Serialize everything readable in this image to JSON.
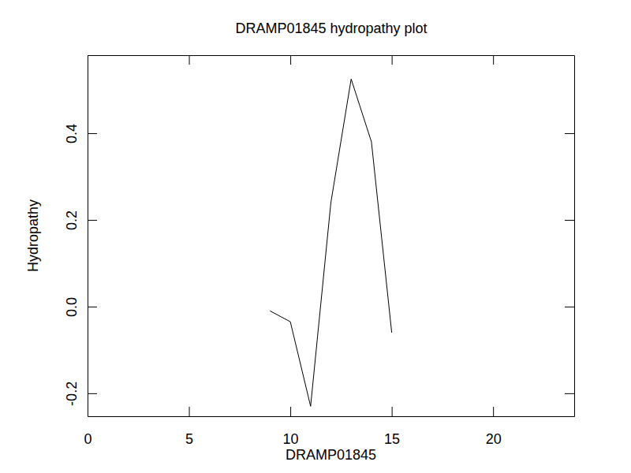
{
  "chart_data": {
    "type": "line",
    "title": "DRAMP01845 hydropathy plot",
    "x_label": "DRAMP01845",
    "y_label": "Hydropathy",
    "x": [
      9,
      10,
      11,
      12,
      13,
      14,
      15
    ],
    "values": [
      -0.01,
      -0.035,
      -0.23,
      0.24,
      0.525,
      0.38,
      -0.06
    ],
    "color": "#000000",
    "xlim": [
      0,
      24
    ],
    "xticks": [
      0,
      5,
      10,
      15,
      20
    ],
    "ylim": [
      -0.253,
      0.58
    ],
    "yticks": [
      -0.2,
      {
        "value": 0,
        "label": "0.0"
      },
      0.2,
      0.4
    ],
    "grid": false
  }
}
